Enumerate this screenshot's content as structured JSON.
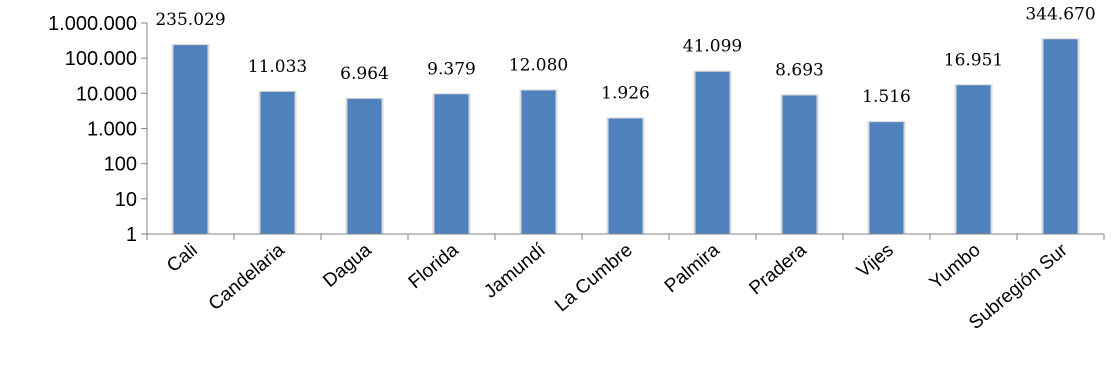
{
  "chart_data": {
    "type": "bar",
    "title": "",
    "xlabel": "",
    "ylabel": "",
    "y_scale": "log",
    "ylim": [
      1,
      1000000
    ],
    "grid": false,
    "legend": "none",
    "bar_color": "#4f81bd",
    "y_ticks": [
      {
        "value": 1,
        "label": "1"
      },
      {
        "value": 10,
        "label": "10"
      },
      {
        "value": 100,
        "label": "100"
      },
      {
        "value": 1000,
        "label": "1.000"
      },
      {
        "value": 10000,
        "label": "10.000"
      },
      {
        "value": 100000,
        "label": "100.000"
      },
      {
        "value": 1000000,
        "label": "1.000.000"
      }
    ],
    "categories": [
      "Cali",
      "Candelaria",
      "Dagua",
      "Florida",
      "Jamundí",
      "La Cumbre",
      "Palmira",
      "Pradera",
      "Vijes",
      "Yumbo",
      "Subregión Sur"
    ],
    "values": [
      235029,
      11033,
      6964,
      9379,
      12080,
      1926,
      41099,
      8693,
      1516,
      16951,
      344670
    ],
    "value_labels": [
      "235.029",
      "11.033",
      "6.964",
      "9.379",
      "12.080",
      "1.926",
      "41.099",
      "8.693",
      "1.516",
      "16.951",
      "344.670"
    ]
  }
}
